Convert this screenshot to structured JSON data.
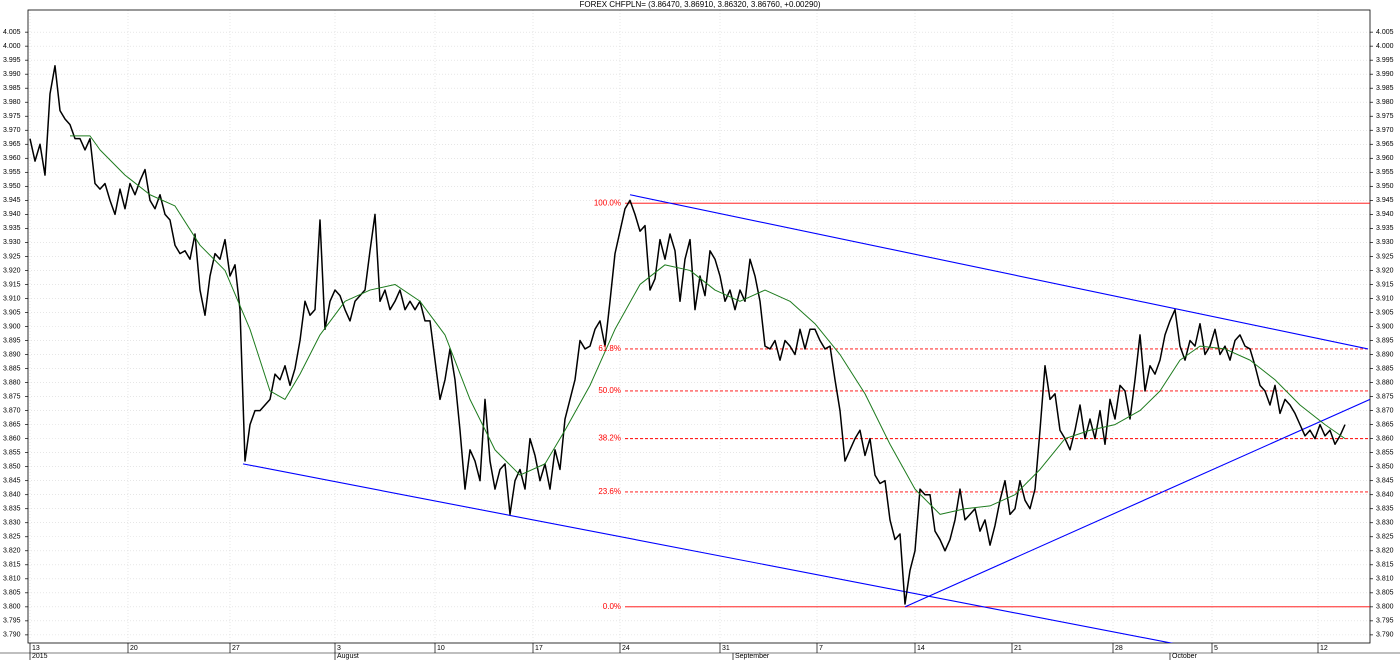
{
  "chart_data": {
    "type": "line",
    "title": "FOREX CHFPLN= (3.86470, 3.86910, 3.86320, 3.86760, +0.00290)",
    "xlim": [
      -0.4,
      268
    ],
    "ylim": [
      3.7871,
      4.0129
    ],
    "grid": true,
    "xticks": [
      {
        "value": 0,
        "label": "13"
      },
      {
        "value": 19.6,
        "label": "20"
      },
      {
        "value": 40,
        "label": "27"
      },
      {
        "value": 61,
        "label": "3"
      },
      {
        "value": 81,
        "label": "10"
      },
      {
        "value": 100.6,
        "label": "17"
      },
      {
        "value": 118,
        "label": "24"
      },
      {
        "value": 138,
        "label": "31"
      },
      {
        "value": 157.4,
        "label": "7"
      },
      {
        "value": 177,
        "label": "14"
      },
      {
        "value": 196.4,
        "label": "21"
      },
      {
        "value": 216.6,
        "label": "28"
      },
      {
        "value": 236.4,
        "label": "5"
      },
      {
        "value": 257.6,
        "label": "12"
      }
    ],
    "month_labels": [
      {
        "value": 0,
        "label": "2015"
      },
      {
        "value": 61,
        "label": "August"
      },
      {
        "value": 140.6,
        "label": "September"
      },
      {
        "value": 228,
        "label": "October"
      }
    ],
    "yticks": [
      {
        "value": 3.79,
        "label": "3.790"
      },
      {
        "value": 3.795,
        "label": "3.795"
      },
      {
        "value": 3.8,
        "label": "3.800"
      },
      {
        "value": 3.805,
        "label": "3.805"
      },
      {
        "value": 3.81,
        "label": "3.810"
      },
      {
        "value": 3.815,
        "label": "3.815"
      },
      {
        "value": 3.82,
        "label": "3.820"
      },
      {
        "value": 3.825,
        "label": "3.825"
      },
      {
        "value": 3.83,
        "label": "3.830"
      },
      {
        "value": 3.835,
        "label": "3.835"
      },
      {
        "value": 3.84,
        "label": "3.840"
      },
      {
        "value": 3.845,
        "label": "3.845"
      },
      {
        "value": 3.85,
        "label": "3.850"
      },
      {
        "value": 3.855,
        "label": "3.855"
      },
      {
        "value": 3.86,
        "label": "3.860"
      },
      {
        "value": 3.865,
        "label": "3.865"
      },
      {
        "value": 3.87,
        "label": "3.870"
      },
      {
        "value": 3.875,
        "label": "3.875"
      },
      {
        "value": 3.88,
        "label": "3.880"
      },
      {
        "value": 3.885,
        "label": "3.885"
      },
      {
        "value": 3.89,
        "label": "3.890"
      },
      {
        "value": 3.895,
        "label": "3.895"
      },
      {
        "value": 3.9,
        "label": "3.900"
      },
      {
        "value": 3.905,
        "label": "3.905"
      },
      {
        "value": 3.91,
        "label": "3.910"
      },
      {
        "value": 3.915,
        "label": "3.915"
      },
      {
        "value": 3.92,
        "label": "3.920"
      },
      {
        "value": 3.925,
        "label": "3.925"
      },
      {
        "value": 3.93,
        "label": "3.930"
      },
      {
        "value": 3.935,
        "label": "3.935"
      },
      {
        "value": 3.94,
        "label": "3.940"
      },
      {
        "value": 3.945,
        "label": "3.945"
      },
      {
        "value": 3.95,
        "label": "3.950"
      },
      {
        "value": 3.955,
        "label": "3.955"
      },
      {
        "value": 3.96,
        "label": "3.960"
      },
      {
        "value": 3.965,
        "label": "3.965"
      },
      {
        "value": 3.97,
        "label": "3.970"
      },
      {
        "value": 3.975,
        "label": "3.975"
      },
      {
        "value": 3.98,
        "label": "3.980"
      },
      {
        "value": 3.985,
        "label": "3.985"
      },
      {
        "value": 3.99,
        "label": "3.990"
      },
      {
        "value": 3.995,
        "label": "3.995"
      },
      {
        "value": 4,
        "label": "4.000"
      },
      {
        "value": 4.005,
        "label": "4.005"
      }
    ],
    "series": [
      {
        "color": "#000000",
        "x": [
          0,
          1,
          2,
          3,
          4,
          5,
          6,
          7,
          8,
          9,
          10,
          11,
          12,
          13,
          14,
          15,
          16,
          17,
          18,
          19,
          20,
          21,
          22,
          23,
          24,
          25,
          26,
          27,
          28,
          29,
          30,
          31,
          32,
          33,
          34,
          35,
          36,
          37,
          38,
          39,
          40,
          41,
          42,
          43,
          44,
          45,
          46,
          47,
          48,
          49,
          50,
          51,
          52,
          53,
          54,
          55,
          56,
          57,
          58,
          59,
          60,
          61,
          62,
          63,
          64,
          65,
          66,
          67,
          68,
          69,
          70,
          71,
          72,
          73,
          74,
          75,
          76,
          77,
          78,
          79,
          80,
          81,
          82,
          83,
          84,
          85,
          86,
          87,
          88,
          89,
          90,
          91,
          92,
          93,
          94,
          95,
          96,
          97,
          98,
          99,
          100,
          101,
          102,
          103,
          104,
          105,
          106,
          107,
          108,
          109,
          110,
          111,
          112,
          113,
          114,
          115,
          116,
          117,
          118,
          119,
          120,
          121,
          122,
          123,
          124,
          125,
          126,
          127,
          128,
          129,
          130,
          131,
          132,
          133,
          134,
          135,
          136,
          137,
          138,
          139,
          140,
          141,
          142,
          143,
          144,
          145,
          146,
          147,
          148,
          149,
          150,
          151,
          152,
          153,
          154,
          155,
          156,
          157,
          158,
          159,
          160,
          161,
          162,
          163,
          164,
          165,
          166,
          167,
          168,
          169,
          170,
          171,
          172,
          173,
          174,
          175,
          176,
          177,
          178,
          179,
          180,
          181,
          182,
          183,
          184,
          185,
          186,
          187,
          188,
          189,
          190,
          191,
          192,
          193,
          194,
          195,
          196,
          197,
          198,
          199,
          200,
          201,
          202,
          203,
          204,
          205,
          206,
          207,
          208,
          209,
          210,
          211,
          212,
          213,
          214,
          215,
          216,
          217,
          218,
          219,
          220,
          221,
          222,
          223,
          224,
          225,
          226,
          227,
          228,
          229,
          230,
          231,
          232,
          233,
          234,
          235,
          236,
          237,
          238,
          239,
          240,
          241,
          242,
          243,
          244,
          245,
          246,
          247,
          248,
          249,
          250,
          251,
          252,
          253,
          254,
          255,
          256,
          257,
          258,
          259,
          260,
          261,
          262,
          263
        ],
        "values": [
          3.967,
          3.959,
          3.965,
          3.954,
          3.983,
          3.993,
          3.977,
          3.974,
          3.972,
          3.967,
          3.967,
          3.963,
          3.967,
          3.951,
          3.949,
          3.951,
          3.945,
          3.94,
          3.949,
          3.942,
          3.951,
          3.947,
          3.952,
          3.956,
          3.945,
          3.942,
          3.947,
          3.94,
          3.938,
          3.929,
          3.926,
          3.927,
          3.924,
          3.933,
          3.913,
          3.904,
          3.918,
          3.926,
          3.924,
          3.931,
          3.918,
          3.922,
          3.906,
          3.852,
          3.865,
          3.87,
          3.87,
          3.872,
          3.874,
          3.883,
          3.881,
          3.886,
          3.879,
          3.885,
          3.895,
          3.909,
          3.904,
          3.906,
          3.938,
          3.899,
          3.909,
          3.913,
          3.911,
          3.906,
          3.902,
          3.909,
          3.911,
          3.913,
          3.927,
          3.94,
          3.909,
          3.913,
          3.906,
          3.909,
          3.913,
          3.906,
          3.909,
          3.906,
          3.909,
          3.902,
          3.902,
          3.888,
          3.874,
          3.881,
          3.892,
          3.881,
          3.863,
          3.842,
          3.856,
          3.852,
          3.845,
          3.874,
          3.852,
          3.842,
          3.849,
          3.851,
          3.833,
          3.845,
          3.849,
          3.842,
          3.86,
          3.854,
          3.845,
          3.851,
          3.842,
          3.856,
          3.849,
          3.867,
          3.874,
          3.881,
          3.895,
          3.892,
          3.893,
          3.899,
          3.902,
          3.893,
          3.909,
          3.926,
          3.934,
          3.942,
          3.945,
          3.94,
          3.934,
          3.936,
          3.913,
          3.917,
          3.931,
          3.924,
          3.933,
          3.927,
          3.909,
          3.924,
          3.931,
          3.906,
          3.918,
          3.911,
          3.927,
          3.924,
          3.918,
          3.909,
          3.913,
          3.906,
          3.913,
          3.909,
          3.924,
          3.918,
          3.909,
          3.893,
          3.892,
          3.895,
          3.888,
          3.895,
          3.893,
          3.89,
          3.899,
          3.892,
          3.899,
          3.899,
          3.895,
          3.892,
          3.893,
          3.881,
          3.87,
          3.852,
          3.856,
          3.86,
          3.863,
          3.854,
          3.86,
          3.847,
          3.844,
          3.845,
          3.831,
          3.824,
          3.826,
          3.801,
          3.813,
          3.82,
          3.842,
          3.84,
          3.84,
          3.827,
          3.824,
          3.82,
          3.824,
          3.831,
          3.842,
          3.831,
          3.833,
          3.835,
          3.827,
          3.831,
          3.822,
          3.829,
          3.838,
          3.845,
          3.833,
          3.835,
          3.845,
          3.838,
          3.835,
          3.842,
          3.863,
          3.886,
          3.874,
          3.876,
          3.863,
          3.86,
          3.856,
          3.863,
          3.872,
          3.86,
          3.867,
          3.86,
          3.87,
          3.858,
          3.874,
          3.867,
          3.879,
          3.877,
          3.867,
          3.881,
          3.897,
          3.877,
          3.886,
          3.883,
          3.888,
          3.897,
          3.902,
          3.906,
          3.893,
          3.888,
          3.895,
          3.893,
          3.901,
          3.89,
          3.893,
          3.899,
          3.89,
          3.893,
          3.888,
          3.895,
          3.897,
          3.893,
          3.892,
          3.886,
          3.879,
          3.877,
          3.872,
          3.879,
          3.869,
          3.874,
          3.872,
          3.869,
          3.865,
          3.861,
          3.863,
          3.86,
          3.865,
          3.861,
          3.863,
          3.858,
          3.861,
          3.865
        ]
      },
      {
        "color": "#1e7b1e",
        "x": [
          8,
          12,
          14,
          19,
          24,
          29,
          34,
          39,
          44,
          48,
          51,
          54,
          58,
          63,
          68,
          73,
          78,
          83,
          88,
          93,
          98,
          103,
          107,
          112,
          117,
          122,
          127,
          132,
          137,
          142,
          147,
          152,
          157,
          162,
          167,
          172,
          177,
          182,
          187,
          192,
          197,
          202,
          207,
          212,
          217,
          222,
          226,
          230,
          234,
          239,
          244,
          249,
          254,
          259,
          263
        ],
        "values": [
          3.968,
          3.968,
          3.963,
          3.954,
          3.947,
          3.943,
          3.929,
          3.92,
          3.899,
          3.877,
          3.874,
          3.883,
          3.897,
          3.909,
          3.913,
          3.915,
          3.909,
          3.897,
          3.874,
          3.856,
          3.847,
          3.851,
          3.863,
          3.879,
          3.899,
          3.915,
          3.922,
          3.92,
          3.913,
          3.909,
          3.913,
          3.909,
          3.901,
          3.89,
          3.876,
          3.858,
          3.842,
          3.833,
          3.835,
          3.836,
          3.84,
          3.849,
          3.86,
          3.863,
          3.865,
          3.87,
          3.877,
          3.888,
          3.893,
          3.892,
          3.888,
          3.881,
          3.872,
          3.865,
          3.86
        ]
      }
    ],
    "trendlines": [
      {
        "color": "#0000ff",
        "x": [
          120,
          267.6
        ],
        "values": [
          3.947,
          3.892
        ]
      },
      {
        "color": "#0000ff",
        "x": [
          42.6,
          243
        ],
        "values": [
          3.851,
          3.782
        ]
      },
      {
        "color": "#0000ff",
        "x": [
          175,
          268
        ],
        "values": [
          3.8,
          3.874
        ]
      }
    ],
    "fibonacci": {
      "color": "#ff0000",
      "start": 119,
      "levels": [
        {
          "label": "100.0%",
          "value": 3.944,
          "style": "solid"
        },
        {
          "label": "61.8%",
          "value": 3.892,
          "style": "dashed"
        },
        {
          "label": "50.0%",
          "value": 3.877,
          "style": "dashed"
        },
        {
          "label": "38.2%",
          "value": 3.86,
          "style": "dashed"
        },
        {
          "label": "23.6%",
          "value": 3.841,
          "style": "dashed"
        },
        {
          "label": "0.0%",
          "value": 3.8,
          "style": "solid"
        }
      ]
    }
  }
}
